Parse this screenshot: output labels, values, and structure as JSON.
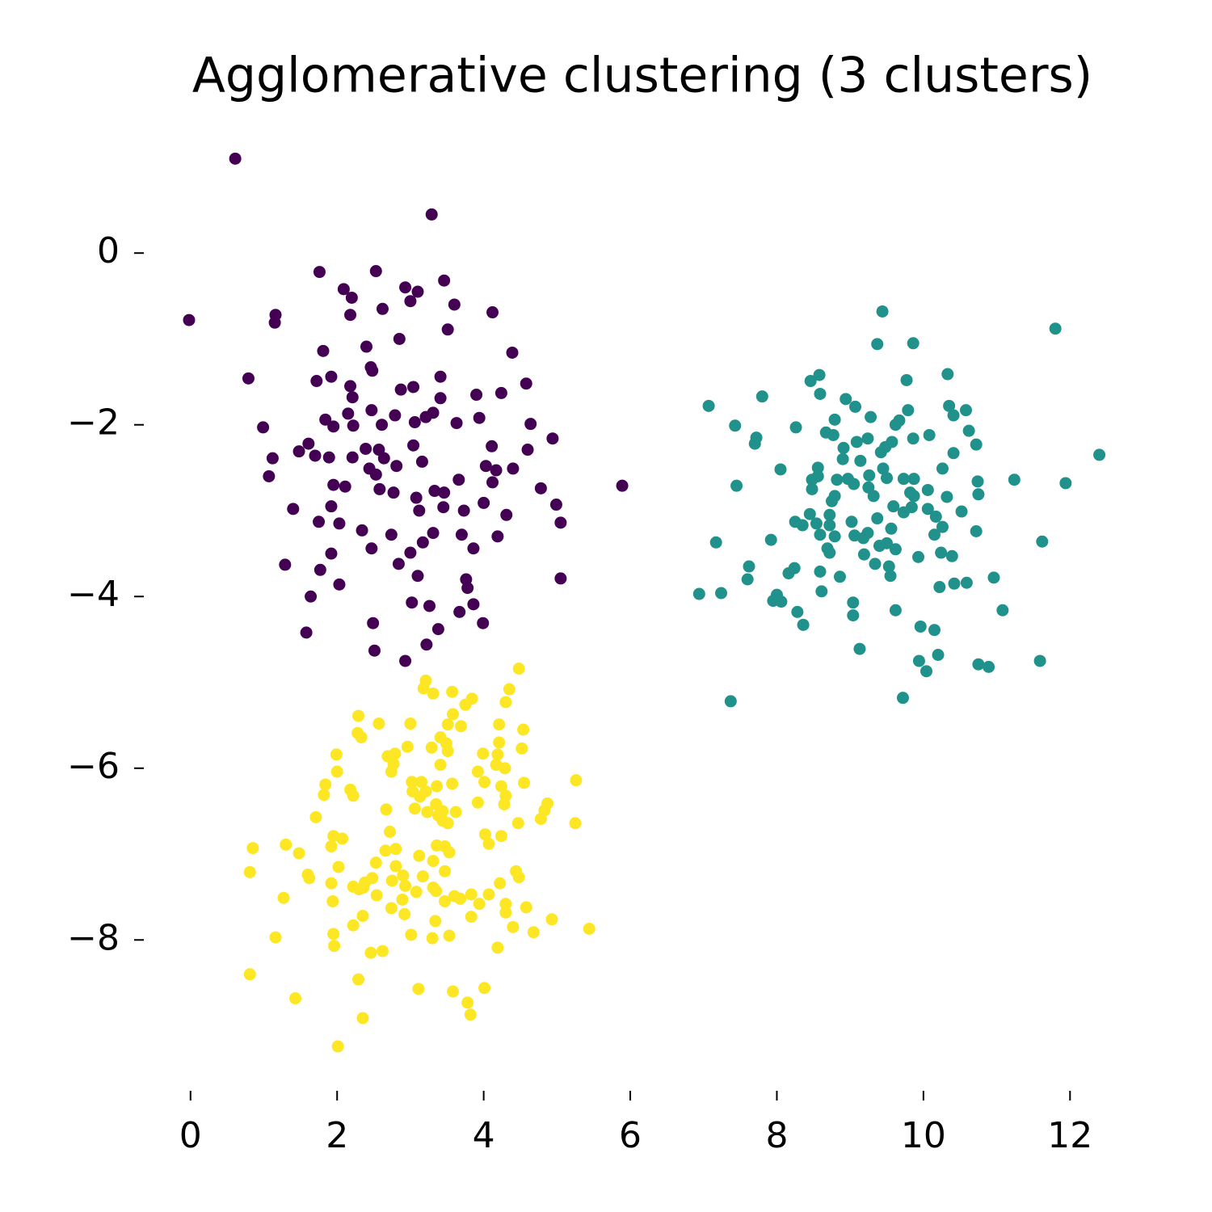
{
  "chart_data": {
    "type": "scatter",
    "title": "Agglomerative clustering (3 clusters)",
    "xlim": [
      -0.56,
      13.0
    ],
    "ylim": [
      -9.71,
      1.63
    ],
    "xticks": [
      0,
      2,
      4,
      6,
      8,
      10,
      12
    ],
    "yticks": [
      0,
      {
        "value": -2,
        "label": "−2"
      },
      {
        "value": -4,
        "label": "−4"
      },
      {
        "value": -6,
        "label": "−6"
      },
      {
        "value": -8,
        "label": "−8"
      }
    ],
    "grid": false,
    "series": [
      {
        "color": "#440154",
        "x": [
          0.61,
          3.29,
          -0.02,
          1.76,
          2.53,
          3.46,
          2.93,
          3.1,
          2.09,
          2.2,
          3.0,
          3.6,
          2.62,
          4.12,
          1.16,
          2.18,
          1.15,
          3.51,
          2.85,
          2.4,
          1.81,
          4.39,
          2.46,
          2.48,
          0.79,
          3.41,
          1.92,
          1.72,
          4.58,
          2.18,
          2.87,
          3.04,
          4.24,
          3.9,
          2.21,
          3.41,
          2.47,
          2.15,
          2.79,
          3.31,
          1.84,
          3.94,
          3.06,
          3.63,
          0.99,
          4.64,
          2.22,
          1.95,
          2.61,
          3.21,
          4.94,
          1.61,
          3.04,
          4.11,
          1.48,
          2.39,
          2.57,
          4.6,
          1.7,
          1.89,
          1.12,
          2.21,
          2.64,
          3.16,
          4.03,
          4.4,
          4.17,
          2.44,
          2.81,
          1.07,
          2.53,
          3.66,
          4.12,
          5.89,
          4.78,
          1.95,
          2.11,
          2.58,
          2.77,
          3.33,
          3.46,
          3.08,
          4.0,
          1.92,
          1.4,
          3.45,
          3.73,
          3.12,
          4.31,
          4.99,
          1.75,
          2.03,
          5.05,
          2.34,
          3.31,
          2.74,
          4.19,
          3.7,
          3.17,
          2.47,
          3.86,
          3.0,
          1.92,
          1.29,
          2.84,
          1.77,
          3.1,
          3.76,
          5.05,
          2.03,
          3.78,
          1.64,
          3.02,
          3.26,
          3.86,
          3.67,
          3.99,
          2.49,
          3.38,
          1.58,
          3.22,
          2.51,
          2.93
        ],
        "y": [
          1.1,
          0.45,
          -0.78,
          -0.22,
          -0.21,
          -0.32,
          -0.4,
          -0.45,
          -0.42,
          -0.52,
          -0.56,
          -0.6,
          -0.65,
          -0.69,
          -0.72,
          -0.72,
          -0.81,
          -0.89,
          -1.0,
          -1.09,
          -1.14,
          -1.16,
          -1.33,
          -1.37,
          -1.46,
          -1.44,
          -1.44,
          -1.49,
          -1.52,
          -1.55,
          -1.59,
          -1.56,
          -1.63,
          -1.65,
          -1.68,
          -1.69,
          -1.83,
          -1.87,
          -1.89,
          -1.86,
          -1.94,
          -1.92,
          -1.97,
          -1.98,
          -2.03,
          -1.99,
          -2.01,
          -2.02,
          -2.0,
          -1.91,
          -2.16,
          -2.22,
          -2.24,
          -2.25,
          -2.31,
          -2.28,
          -2.29,
          -2.29,
          -2.36,
          -2.38,
          -2.39,
          -2.38,
          -2.39,
          -2.43,
          -2.48,
          -2.51,
          -2.53,
          -2.51,
          -2.48,
          -2.6,
          -2.58,
          -2.64,
          -2.67,
          -2.71,
          -2.74,
          -2.7,
          -2.72,
          -2.75,
          -2.79,
          -2.77,
          -2.79,
          -2.85,
          -2.91,
          -2.95,
          -2.98,
          -2.96,
          -3.0,
          -3.0,
          -3.05,
          -2.93,
          -3.13,
          -3.15,
          -3.14,
          -3.23,
          -3.26,
          -3.28,
          -3.3,
          -3.28,
          -3.37,
          -3.44,
          -3.44,
          -3.49,
          -3.5,
          -3.63,
          -3.62,
          -3.69,
          -3.76,
          -3.8,
          -3.79,
          -3.86,
          -3.9,
          -4.0,
          -4.07,
          -4.11,
          -4.09,
          -4.18,
          -4.31,
          -4.31,
          -4.38,
          -4.42,
          -4.56,
          -4.63,
          -4.75
        ]
      },
      {
        "color": "#21918c",
        "x": [
          9.44,
          11.8,
          9.86,
          9.37,
          10.33,
          8.58,
          9.77,
          8.46,
          8.59,
          7.8,
          8.94,
          7.07,
          9.07,
          10.35,
          10.58,
          9.79,
          10.41,
          9.28,
          8.79,
          9.67,
          9.62,
          7.43,
          8.26,
          10.62,
          8.67,
          8.77,
          10.08,
          7.72,
          9.24,
          9.86,
          9.09,
          9.57,
          7.7,
          10.72,
          9.48,
          8.91,
          9.42,
          10.41,
          12.4,
          8.9,
          9.14,
          8.56,
          8.05,
          10.26,
          9.45,
          9.26,
          8.56,
          9.5,
          9.73,
          9.87,
          8.82,
          8.97,
          8.48,
          11.24,
          10.74,
          11.94,
          9.05,
          7.45,
          9.25,
          8.48,
          10.06,
          9.82,
          10.75,
          8.79,
          10.32,
          9.87,
          9.32,
          8.75,
          9.59,
          9.84,
          10.06,
          8.45,
          8.72,
          9.73,
          10.52,
          10.17,
          9.37,
          9.02,
          8.25,
          8.35,
          8.54,
          8.72,
          10.26,
          9.56,
          8.59,
          9.24,
          8.79,
          9.06,
          10.15,
          10.72,
          9.18,
          7.17,
          7.92,
          11.62,
          9.4,
          9.5,
          8.69,
          9.62,
          8.72,
          9.19,
          10.24,
          10.39,
          9.93,
          9.34,
          9.53,
          7.62,
          8.24,
          8.59,
          8.16,
          9.55,
          7.6,
          8.86,
          10.96,
          10.42,
          10.59,
          10.22,
          8.61,
          6.94,
          7.24,
          8.0,
          7.95,
          8.06,
          9.04,
          8.28,
          9.62,
          11.08,
          9.04,
          8.36,
          9.96,
          10.15,
          9.13,
          10.2,
          9.94,
          11.59,
          10.75,
          10.89,
          10.04,
          9.72,
          7.37
        ],
        "y": [
          -0.68,
          -0.88,
          -1.05,
          -1.06,
          -1.41,
          -1.42,
          -1.48,
          -1.49,
          -1.64,
          -1.67,
          -1.7,
          -1.78,
          -1.79,
          -1.78,
          -1.83,
          -1.83,
          -1.89,
          -1.91,
          -1.94,
          -1.95,
          -2.0,
          -2.01,
          -2.03,
          -2.07,
          -2.09,
          -2.12,
          -2.12,
          -2.15,
          -2.16,
          -2.16,
          -2.2,
          -2.2,
          -2.22,
          -2.23,
          -2.26,
          -2.27,
          -2.32,
          -2.33,
          -2.35,
          -2.4,
          -2.42,
          -2.5,
          -2.52,
          -2.51,
          -2.51,
          -2.59,
          -2.6,
          -2.62,
          -2.63,
          -2.63,
          -2.64,
          -2.63,
          -2.64,
          -2.64,
          -2.66,
          -2.68,
          -2.69,
          -2.71,
          -2.73,
          -2.75,
          -2.76,
          -2.79,
          -2.81,
          -2.83,
          -2.84,
          -2.83,
          -2.83,
          -2.89,
          -2.95,
          -2.96,
          -2.98,
          -3.04,
          -3.05,
          -3.02,
          -3.01,
          -3.07,
          -3.09,
          -3.13,
          -3.13,
          -3.17,
          -3.15,
          -3.17,
          -3.19,
          -3.21,
          -3.28,
          -3.26,
          -3.3,
          -3.29,
          -3.28,
          -3.24,
          -3.32,
          -3.37,
          -3.34,
          -3.36,
          -3.41,
          -3.38,
          -3.44,
          -3.45,
          -3.49,
          -3.51,
          -3.49,
          -3.53,
          -3.54,
          -3.62,
          -3.65,
          -3.65,
          -3.67,
          -3.71,
          -3.73,
          -3.76,
          -3.8,
          -3.77,
          -3.78,
          -3.85,
          -3.84,
          -3.89,
          -3.94,
          -3.97,
          -3.96,
          -3.98,
          -4.05,
          -4.06,
          -4.07,
          -4.18,
          -4.16,
          -4.16,
          -4.22,
          -4.33,
          -4.35,
          -4.39,
          -4.61,
          -4.68,
          -4.75,
          -4.75,
          -4.79,
          -4.82,
          -4.87,
          -5.18,
          -5.22
        ]
      },
      {
        "color": "#fde725",
        "x": [
          4.48,
          3.21,
          3.18,
          3.31,
          4.35,
          3.57,
          3.84,
          4.3,
          3.75,
          2.29,
          3.58,
          2.57,
          3.0,
          3.51,
          4.21,
          3.69,
          4.54,
          2.28,
          2.33,
          3.41,
          3.49,
          4.21,
          2.96,
          3.29,
          4.52,
          3.51,
          1.99,
          3.99,
          2.69,
          4.19,
          2.79,
          2.77,
          3.41,
          4.17,
          4.29,
          2.0,
          2.74,
          3.92,
          5.26,
          3.02,
          3.15,
          4.01,
          4.55,
          3.57,
          1.84,
          3.36,
          4.24,
          2.18,
          3.03,
          3.21,
          1.82,
          2.22,
          3.13,
          4.3,
          4.87,
          3.35,
          3.92,
          4.28,
          3.06,
          2.67,
          4.83,
          3.44,
          3.23,
          3.62,
          3.38,
          1.71,
          4.78,
          3.44,
          3.51,
          5.25,
          4.47,
          2.72,
          4.02,
          1.95,
          4.24,
          2.07,
          4.07,
          1.3,
          0.85,
          3.36,
          1.92,
          3.47,
          2.8,
          2.66,
          3.53,
          1.48,
          3.12,
          3.31,
          2.53,
          2.02,
          2.8,
          0.81,
          4.44,
          1.6,
          3.47,
          3.17,
          2.9,
          1.62,
          2.48,
          4.48,
          2.75,
          4.22,
          2.38,
          1.92,
          2.93,
          2.22,
          2.36,
          3.31,
          2.3,
          3.35,
          3.08,
          2.54,
          3.6,
          4.07,
          3.83,
          1.27,
          2.89,
          3.68,
          1.94,
          3.47,
          3.94,
          4.3,
          4.58,
          2.74,
          4.3,
          2.92,
          2.35,
          3.83,
          3.34,
          4.93,
          2.22,
          4.4,
          5.44,
          4.68,
          3.01,
          3.53,
          1.95,
          1.16,
          3.3,
          1.96,
          4.19,
          2.62,
          2.46,
          0.81,
          2.29,
          3.11,
          4.01,
          3.58,
          1.43,
          3.78,
          3.82,
          2.35,
          2.01
        ],
        "y": [
          -4.84,
          -4.98,
          -5.07,
          -5.13,
          -5.08,
          -5.11,
          -5.19,
          -5.23,
          -5.26,
          -5.39,
          -5.37,
          -5.48,
          -5.48,
          -5.49,
          -5.49,
          -5.51,
          -5.55,
          -5.59,
          -5.64,
          -5.64,
          -5.71,
          -5.7,
          -5.75,
          -5.76,
          -5.77,
          -5.8,
          -5.84,
          -5.83,
          -5.86,
          -5.84,
          -5.83,
          -5.95,
          -5.96,
          -5.96,
          -6.0,
          -6.04,
          -6.04,
          -6.04,
          -6.14,
          -6.16,
          -6.16,
          -6.16,
          -6.17,
          -6.18,
          -6.19,
          -6.21,
          -6.21,
          -6.25,
          -6.27,
          -6.27,
          -6.31,
          -6.32,
          -6.33,
          -6.32,
          -6.41,
          -6.42,
          -6.4,
          -6.42,
          -6.47,
          -6.48,
          -6.49,
          -6.5,
          -6.51,
          -6.51,
          -6.55,
          -6.57,
          -6.59,
          -6.61,
          -6.64,
          -6.64,
          -6.64,
          -6.74,
          -6.77,
          -6.79,
          -6.79,
          -6.82,
          -6.88,
          -6.89,
          -6.93,
          -6.9,
          -6.91,
          -6.91,
          -6.94,
          -6.96,
          -6.98,
          -6.99,
          -7.02,
          -7.08,
          -7.1,
          -7.15,
          -7.14,
          -7.21,
          -7.2,
          -7.24,
          -7.2,
          -7.26,
          -7.25,
          -7.28,
          -7.28,
          -7.27,
          -7.31,
          -7.34,
          -7.33,
          -7.34,
          -7.37,
          -7.38,
          -7.39,
          -7.39,
          -7.41,
          -7.43,
          -7.44,
          -7.48,
          -7.49,
          -7.47,
          -7.47,
          -7.51,
          -7.53,
          -7.52,
          -7.55,
          -7.55,
          -7.58,
          -7.58,
          -7.62,
          -7.63,
          -7.68,
          -7.7,
          -7.72,
          -7.73,
          -7.78,
          -7.76,
          -7.83,
          -7.85,
          -7.87,
          -7.91,
          -7.94,
          -7.95,
          -7.93,
          -7.97,
          -7.98,
          -8.07,
          -8.09,
          -8.13,
          -8.15,
          -8.4,
          -8.46,
          -8.57,
          -8.56,
          -8.6,
          -8.68,
          -8.73,
          -8.87,
          -8.91,
          -9.24
        ]
      }
    ]
  }
}
